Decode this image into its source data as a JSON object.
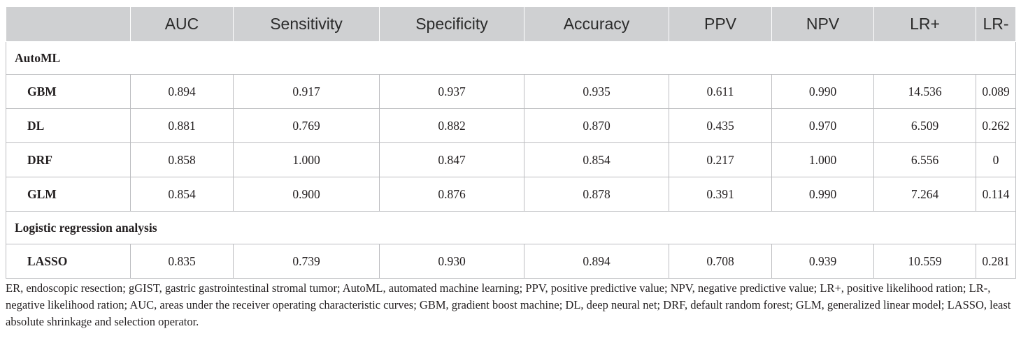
{
  "table": {
    "headers": [
      "",
      "AUC",
      "Sensitivity",
      "Specificity",
      "Accuracy",
      "PPV",
      "NPV",
      "LR+",
      "LR-"
    ],
    "sections": [
      {
        "title": "AutoML",
        "rows": [
          {
            "name": "GBM",
            "values": [
              "0.894",
              "0.917",
              "0.937",
              "0.935",
              "0.611",
              "0.990",
              "14.536",
              "0.089"
            ]
          },
          {
            "name": "DL",
            "values": [
              "0.881",
              "0.769",
              "0.882",
              "0.870",
              "0.435",
              "0.970",
              "6.509",
              "0.262"
            ]
          },
          {
            "name": "DRF",
            "values": [
              "0.858",
              "1.000",
              "0.847",
              "0.854",
              "0.217",
              "1.000",
              "6.556",
              "0"
            ]
          },
          {
            "name": "GLM",
            "values": [
              "0.854",
              "0.900",
              "0.876",
              "0.878",
              "0.391",
              "0.990",
              "7.264",
              "0.114"
            ]
          }
        ]
      },
      {
        "title": "Logistic regression analysis",
        "rows": [
          {
            "name": "LASSO",
            "values": [
              "0.835",
              "0.739",
              "0.930",
              "0.894",
              "0.708",
              "0.939",
              "10.559",
              "0.281"
            ]
          }
        ]
      }
    ],
    "header_bg": "#cfd0d2"
  },
  "footnote": "ER, endoscopic resection; gGIST, gastric gastrointestinal stromal tumor; AutoML, automated machine learning; PPV, positive predictive value; NPV, negative predictive value; LR+, positive likelihood ration; LR-, negative likelihood ration; AUC, areas under the receiver operating characteristic curves; GBM, gradient boost machine; DL, deep neural net; DRF, default random forest; GLM, generalized linear model; LASSO, least absolute shrinkage and selection operator."
}
